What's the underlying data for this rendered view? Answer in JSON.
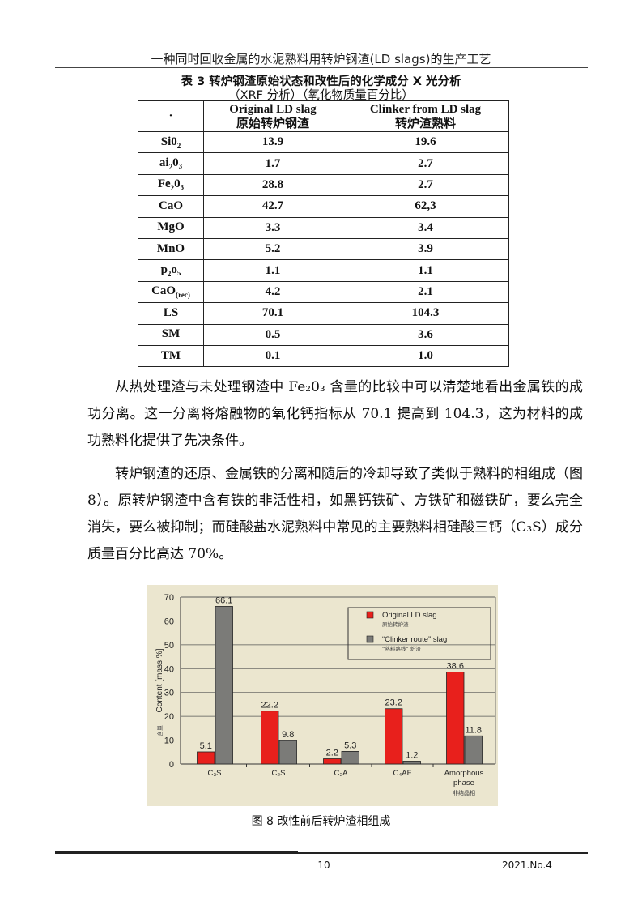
{
  "header": {
    "running_title": "一种同时回收金属的水泥熟料用转炉钢渣(LD slags)的生产工艺"
  },
  "table": {
    "title_line1": "表 3  转炉钢渣原始状态和改性后的化学成分 X 光分析",
    "title_line2": "（XRF 分析）（氧化物质量百分比）",
    "corner": "·",
    "col1_en": "Original LD slag",
    "col1_zh": "原始转炉钢渣",
    "col2_en": "Clinker from LD slag",
    "col2_zh": "转炉渣熟料",
    "rows": [
      {
        "base": "Si0",
        "sub": "2",
        "rest": "",
        "orig": "13.9",
        "clinker": "19.6"
      },
      {
        "base": "ai",
        "sub": "2",
        "rest": "0₃",
        "orig": "1.7",
        "clinker": "2.7"
      },
      {
        "base": "Fe",
        "sub": "2",
        "rest": "0₃",
        "orig": "28.8",
        "clinker": "2.7"
      },
      {
        "base": "CaO",
        "sub": "",
        "rest": "",
        "orig": "42.7",
        "clinker": "62,3"
      },
      {
        "base": "MgO",
        "sub": "",
        "rest": "",
        "orig": "3.3",
        "clinker": "3.4"
      },
      {
        "base": "MnO",
        "sub": "",
        "rest": "",
        "orig": "5.2",
        "clinker": "3.9"
      },
      {
        "base": "p",
        "sub": "2",
        "rest": "o₅",
        "orig": "1.1",
        "clinker": "1.1"
      },
      {
        "base": "CaO",
        "sub": "(rec)",
        "rest": "",
        "orig": "4.2",
        "clinker": "2.1"
      },
      {
        "base": "LS",
        "sub": "",
        "rest": "",
        "orig": "70.1",
        "clinker": "104.3"
      },
      {
        "base": "SM",
        "sub": "",
        "rest": "",
        "orig": "0.5",
        "clinker": "3.6"
      },
      {
        "base": "TM",
        "sub": "",
        "rest": "",
        "orig": "0.1",
        "clinker": "1.0"
      }
    ]
  },
  "paragraphs": [
    "从热处理渣与未处理钢渣中 Fe₂0₃ 含量的比较中可以清楚地看出金属铁的成功分离。这一分离将熔融物的氧化钙指标从 70.1 提高到 104.3，这为材料的成功熟料化提供了先决条件。",
    "转炉钢渣的还原、金属铁的分离和随后的冷却导致了类似于熟料的相组成（图 8）。原转炉钢渣中含有铁的非活性相，如黑钙铁矿、方铁矿和磁铁矿，要么完全消失，要么被抑制；而硅酸盐水泥熟料中常见的主要熟料相硅酸三钙（C₃S）成分质量百分比高达 70%。"
  ],
  "chart_data": {
    "type": "bar",
    "categories": [
      "C₃S",
      "C₂S",
      "C₃A",
      "C₄AF",
      "Amorphous phase"
    ],
    "category_sublabels": [
      "",
      "",
      "",
      "",
      "非结晶相"
    ],
    "series": [
      {
        "name": "Original LD slag",
        "name_zh": "原始转炉渣",
        "color": "#e8201c",
        "values": [
          5.1,
          22.2,
          2.2,
          23.2,
          38.6
        ]
      },
      {
        "name": "“Clinker route” slag",
        "name_zh": "“熟料路线” 炉渣",
        "color": "#7b7b78",
        "values": [
          66.1,
          9.8,
          5.3,
          1.2,
          11.8
        ]
      }
    ],
    "ylabel": "Content [mass %]",
    "ylabel_zh": "含量",
    "ylim": [
      0,
      70
    ],
    "yticks": [
      0,
      10,
      20,
      30,
      40,
      50,
      60,
      70
    ],
    "grid": true,
    "legend": "top-right",
    "background": "#ebe6cf"
  },
  "caption": "图 8  改性前后转炉渣相组成",
  "footer": {
    "page": "10",
    "issue": "2021.No.4"
  }
}
